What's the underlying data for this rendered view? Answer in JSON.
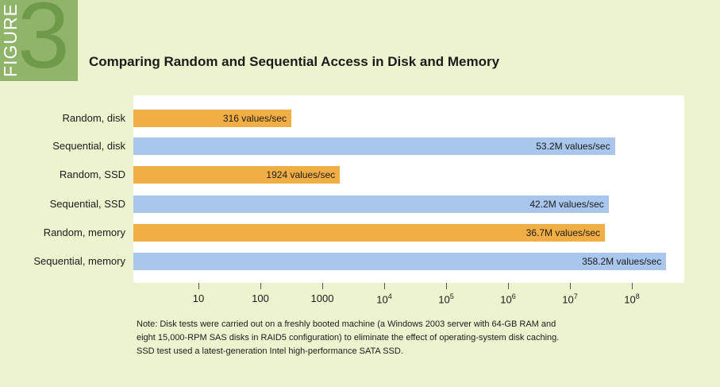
{
  "figure": {
    "word": "FIGURE",
    "number": "3"
  },
  "chart_data": {
    "type": "bar",
    "orientation": "horizontal",
    "title": "Comparing Random and Sequential Access in Disk and Memory",
    "xscale": "log",
    "xlim": [
      1,
      500000000
    ],
    "categories": [
      "Random, disk",
      "Sequential, disk",
      "Random, SSD",
      "Sequential, SSD",
      "Random, memory",
      "Sequential, memory"
    ],
    "values": [
      316,
      53200000,
      1924,
      42200000,
      36700000,
      358200000
    ],
    "value_labels": [
      "316 values/sec",
      "53.2M values/sec",
      "1924 values/sec",
      "42.2M values/sec",
      "36.7M values/sec",
      "358.2M values/sec"
    ],
    "access_type": [
      "Random",
      "Sequential",
      "Random",
      "Sequential",
      "Random",
      "Sequential"
    ],
    "colors": {
      "Random": "#f0ae45",
      "Sequential": "#a9c6ec"
    },
    "ticks": [
      {
        "value": 10,
        "base": "10",
        "exp": ""
      },
      {
        "value": 100,
        "base": "100",
        "exp": ""
      },
      {
        "value": 1000,
        "base": "1000",
        "exp": ""
      },
      {
        "value": 10000,
        "base": "10",
        "exp": "4"
      },
      {
        "value": 100000,
        "base": "10",
        "exp": "5"
      },
      {
        "value": 1000000,
        "base": "10",
        "exp": "6"
      },
      {
        "value": 10000000,
        "base": "10",
        "exp": "7"
      },
      {
        "value": 100000000,
        "base": "10",
        "exp": "8"
      }
    ],
    "legend": "none",
    "grid": false
  },
  "note": {
    "lines": [
      "Note: Disk tests were carried out on a freshly booted machine (a Windows 2003 server with 64-GB RAM and",
      "eight 15,000-RPM SAS disks in RAID5 configuration) to eliminate the effect of operating-system disk caching.",
      "SSD test used a latest-generation Intel high-performance SATA SSD."
    ]
  }
}
